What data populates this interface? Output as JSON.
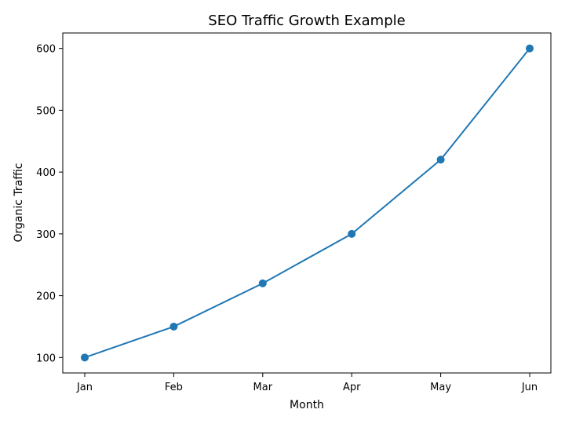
{
  "chart_data": {
    "type": "line",
    "title": "SEO Traffic Growth Example",
    "xlabel": "Month",
    "ylabel": "Organic Traffic",
    "categories": [
      "Jan",
      "Feb",
      "Mar",
      "Apr",
      "May",
      "Jun"
    ],
    "series": [
      {
        "values": [
          100,
          150,
          220,
          300,
          420,
          600
        ],
        "color": "#1f77b4",
        "marker": "circle"
      }
    ],
    "yticks": [
      100,
      200,
      300,
      400,
      500,
      600
    ],
    "ylim": [
      75,
      625
    ],
    "grid": false,
    "legend": false
  }
}
